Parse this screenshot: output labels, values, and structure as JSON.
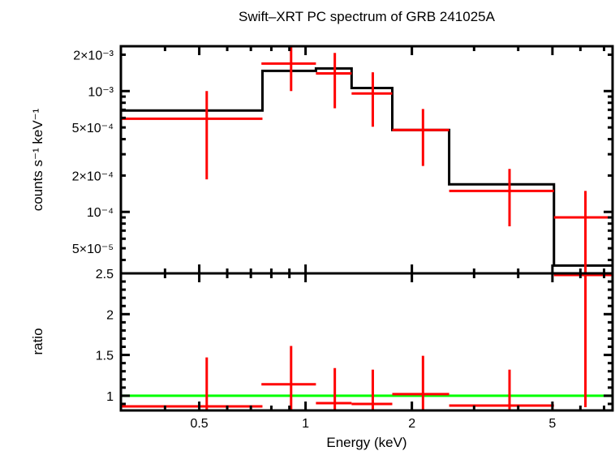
{
  "chart_data": [
    {
      "panel": "spectrum",
      "type": "scatter",
      "title": "Swift–XRT PC spectrum of GRB 241025A",
      "xlabel": "Energy (keV)",
      "ylabel": "counts s⁻¹ keV⁻¹",
      "xscale": "log",
      "yscale": "log",
      "xlim": [
        0.3,
        7.4
      ],
      "ylim": [
        3.1e-05,
        0.00235
      ],
      "yticks": [
        {
          "value": 0.002,
          "label": "2×10⁻³"
        },
        {
          "value": 0.001,
          "label": "10⁻³"
        },
        {
          "value": 0.0005,
          "label": "5×10⁻⁴"
        },
        {
          "value": 0.0002,
          "label": "2×10⁻⁴"
        },
        {
          "value": 0.0001,
          "label": "10⁻⁴"
        },
        {
          "value": 5e-05,
          "label": "5×10⁻⁵"
        }
      ],
      "series": [
        {
          "name": "data",
          "color": "#ff0000",
          "points": [
            {
              "x": 0.525,
              "xlo": 0.3,
              "xhi": 0.755,
              "y": 0.00059,
              "ylo": 0.000186,
              "yhi": 0.001
            },
            {
              "x": 0.91,
              "xlo": 0.75,
              "xhi": 1.07,
              "y": 0.00169,
              "ylo": 0.001,
              "yhi": 0.00241
            },
            {
              "x": 1.21,
              "xlo": 1.07,
              "xhi": 1.35,
              "y": 0.0014,
              "ylo": 0.00072,
              "yhi": 0.00207
            },
            {
              "x": 1.55,
              "xlo": 1.35,
              "xhi": 1.76,
              "y": 0.000955,
              "ylo": 0.000507,
              "yhi": 0.00143
            },
            {
              "x": 2.15,
              "xlo": 1.76,
              "xhi": 2.55,
              "y": 0.000476,
              "ylo": 0.00024,
              "yhi": 0.00071
            },
            {
              "x": 3.78,
              "xlo": 2.55,
              "xhi": 5.05,
              "y": 0.000149,
              "ylo": 7.6e-05,
              "yhi": 0.000227
            },
            {
              "x": 6.2,
              "xlo": 5.05,
              "xhi": 7.4,
              "y": 9e-05,
              "ylo": 1e-05,
              "yhi": 0.000149
            }
          ]
        },
        {
          "name": "model",
          "color": "#000000",
          "type": "step",
          "steps": [
            {
              "xlo": 0.3,
              "xhi": 0.755,
              "y": 0.00069
            },
            {
              "xlo": 0.755,
              "xhi": 1.07,
              "y": 0.00147
            },
            {
              "xlo": 1.07,
              "xhi": 1.35,
              "y": 0.00154
            },
            {
              "xlo": 1.35,
              "xhi": 1.76,
              "y": 0.00106
            },
            {
              "xlo": 1.76,
              "xhi": 2.55,
              "y": 0.000476
            },
            {
              "xlo": 2.55,
              "xhi": 5.05,
              "y": 0.000169
            },
            {
              "xlo": 5.05,
              "xhi": 7.4,
              "y": 3.6e-05
            }
          ]
        }
      ]
    },
    {
      "panel": "ratio",
      "type": "scatter",
      "xlabel": "Energy (keV)",
      "ylabel": "ratio",
      "xscale": "log",
      "yscale": "linear",
      "xlim": [
        0.3,
        7.4
      ],
      "ylim": [
        0.82,
        2.5
      ],
      "xticks": [
        {
          "value": 0.5,
          "label": "0.5"
        },
        {
          "value": 1,
          "label": "1"
        },
        {
          "value": 2,
          "label": "2"
        },
        {
          "value": 5,
          "label": "5"
        }
      ],
      "yticks": [
        {
          "value": 2.5,
          "label": "2.5"
        },
        {
          "value": 2,
          "label": "2"
        },
        {
          "value": 1.5,
          "label": "1.5"
        },
        {
          "value": 1,
          "label": "1"
        }
      ],
      "reference_line": {
        "y": 1,
        "color": "#00ff00"
      },
      "series": [
        {
          "name": "ratio",
          "color": "#ff0000",
          "points": [
            {
              "x": 0.525,
              "xlo": 0.3,
              "xhi": 0.755,
              "y": 0.87,
              "ylo": 0.7,
              "yhi": 1.47
            },
            {
              "x": 0.91,
              "xlo": 0.75,
              "xhi": 1.07,
              "y": 1.14,
              "ylo": 0.7,
              "yhi": 1.61
            },
            {
              "x": 1.21,
              "xlo": 1.07,
              "xhi": 1.35,
              "y": 0.91,
              "ylo": 0.7,
              "yhi": 1.34
            },
            {
              "x": 1.55,
              "xlo": 1.35,
              "xhi": 1.76,
              "y": 0.9,
              "ylo": 0.7,
              "yhi": 1.32
            },
            {
              "x": 2.15,
              "xlo": 1.76,
              "xhi": 2.55,
              "y": 1.02,
              "ylo": 0.7,
              "yhi": 1.49
            },
            {
              "x": 3.78,
              "xlo": 2.55,
              "xhi": 5.05,
              "y": 0.88,
              "ylo": 0.7,
              "yhi": 1.32
            },
            {
              "x": 6.2,
              "xlo": 5.05,
              "xhi": 7.4,
              "y": 2.48,
              "ylo": 0.86,
              "yhi": 3.0
            }
          ]
        }
      ]
    }
  ]
}
